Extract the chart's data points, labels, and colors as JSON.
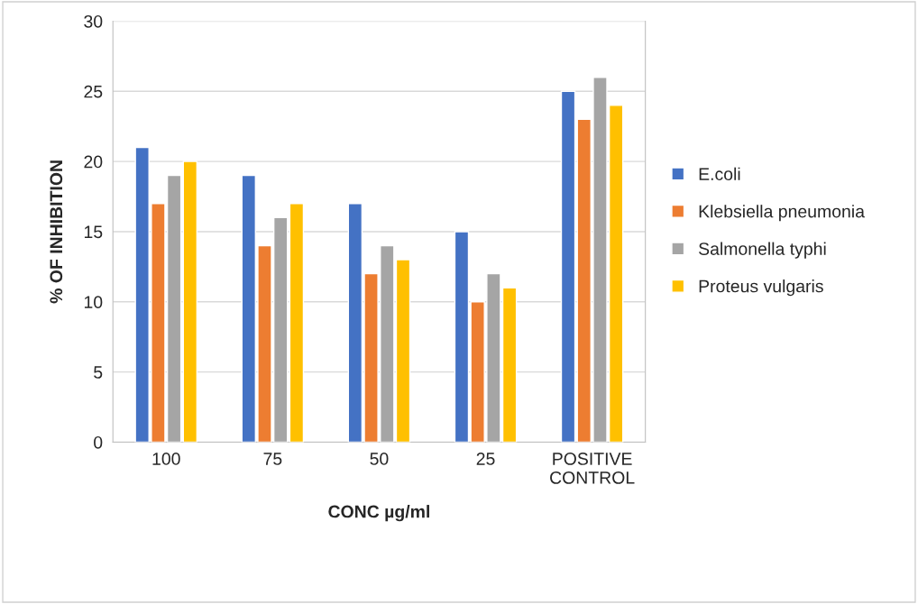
{
  "chart_data": {
    "type": "bar",
    "xlabel": "CONC µg/ml",
    "ylabel": "% OF INHIBITION",
    "categories": [
      "100",
      "75",
      "50",
      "25",
      "POSITIVE CONTROL"
    ],
    "series": [
      {
        "name": "E.coli",
        "color": "#4472c4",
        "values": [
          21,
          19,
          17,
          15,
          25
        ]
      },
      {
        "name": "Klebsiella pneumonia",
        "color": "#ed7d31",
        "values": [
          17,
          14,
          12,
          10,
          23
        ]
      },
      {
        "name": "Salmonella typhi",
        "color": "#a5a5a5",
        "values": [
          19,
          16,
          14,
          12,
          26
        ]
      },
      {
        "name": "Proteus vulgaris",
        "color": "#ffc000",
        "values": [
          20,
          17,
          13,
          11,
          24
        ]
      }
    ],
    "ylim": [
      0,
      30
    ],
    "yticks": [
      0,
      5,
      10,
      15,
      20,
      25,
      30
    ],
    "grid": "y",
    "legend": "right"
  }
}
